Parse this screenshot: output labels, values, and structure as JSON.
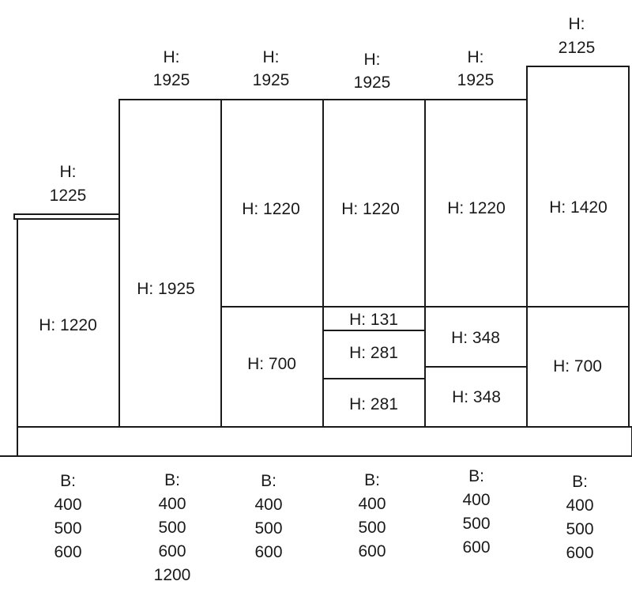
{
  "columns": [
    {
      "top_label": [
        "H:",
        "1225"
      ],
      "panels": [
        "H: 1220"
      ],
      "widths": [
        "B:",
        "400",
        "500",
        "600"
      ]
    },
    {
      "top_label": [
        "H:",
        "1925"
      ],
      "panels": [
        "H: 1925"
      ],
      "widths": [
        "B:",
        "400",
        "500",
        "600",
        "1200"
      ]
    },
    {
      "top_label": [
        "H:",
        "1925"
      ],
      "panels": [
        "H: 1220",
        "H: 700"
      ],
      "widths": [
        "B:",
        "400",
        "500",
        "600"
      ]
    },
    {
      "top_label": [
        "H:",
        "1925"
      ],
      "panels": [
        "H: 1220",
        "H: 131",
        "H: 281",
        "H: 281"
      ],
      "widths": [
        "B:",
        "400",
        "500",
        "600"
      ]
    },
    {
      "top_label": [
        "H:",
        "1925"
      ],
      "panels": [
        "H: 1220",
        "H: 348",
        "H: 348"
      ],
      "widths": [
        "B:",
        "400",
        "500",
        "600"
      ]
    },
    {
      "top_label": [
        "H:",
        "2125"
      ],
      "panels": [
        "H: 1420",
        "H: 700"
      ],
      "widths": [
        "B:",
        "400",
        "500",
        "600"
      ]
    }
  ]
}
